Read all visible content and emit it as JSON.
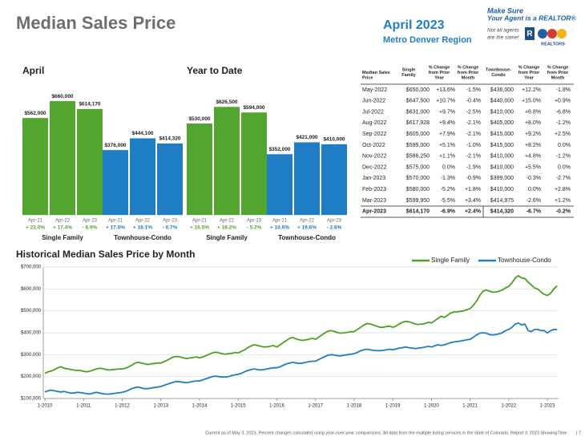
{
  "header": {
    "title": "Median Sales Price",
    "date": "April 2023",
    "region": "Metro Denver Region",
    "logo": {
      "line1": "Make Sure",
      "line2": "Your Agent is a REALTOR®",
      "note1": "Not all agents",
      "note2": "are the same!",
      "brand": "REALTORS"
    }
  },
  "chart_data": [
    {
      "type": "bar",
      "title": "April",
      "categories": [
        "Apr-21",
        "Apr-22",
        "Apr-23"
      ],
      "series": [
        {
          "name": "Single Family",
          "color": "#52a52e",
          "values": [
            562000,
            660000,
            614170
          ],
          "value_labels": [
            "$562,000",
            "$660,000",
            "$614,170"
          ],
          "changes": [
            "+ 23.0%",
            "+ 17.4%",
            "- 6.9%"
          ]
        },
        {
          "name": "Townhouse-Condo",
          "color": "#1f7dc5",
          "values": [
            376000,
            444100,
            414320
          ],
          "value_labels": [
            "$376,000",
            "$444,100",
            "$414,320"
          ],
          "changes": [
            "+ 17.0%",
            "+ 18.1%",
            "- 6.7%"
          ]
        }
      ]
    },
    {
      "type": "bar",
      "title": "Year to Date",
      "categories": [
        "Apr-21",
        "Apr-22",
        "Apr-23"
      ],
      "series": [
        {
          "name": "Single Family",
          "color": "#52a52e",
          "values": [
            530000,
            626500,
            594000
          ],
          "value_labels": [
            "$530,000",
            "$626,500",
            "$594,000"
          ],
          "changes": [
            "+ 16.5%",
            "+ 18.2%",
            "- 5.2%"
          ]
        },
        {
          "name": "Townhouse-Condo",
          "color": "#1f7dc5",
          "values": [
            352000,
            421000,
            410000
          ],
          "value_labels": [
            "$352,000",
            "$421,000",
            "$410,000"
          ],
          "changes": [
            "+ 10.6%",
            "+ 19.6%",
            "- 2.6%"
          ]
        }
      ]
    },
    {
      "type": "line",
      "title": "Historical Median Sales Price by Month",
      "legend": "top-right",
      "grid": true,
      "ylim": [
        100000,
        700000
      ],
      "yticks": [
        {
          "value": 100000,
          "label": "$100,000"
        },
        {
          "value": 200000,
          "label": "$200,000"
        },
        {
          "value": 300000,
          "label": "$300,000"
        },
        {
          "value": 400000,
          "label": "$400,000"
        },
        {
          "value": 500000,
          "label": "$500,000"
        },
        {
          "value": 600000,
          "label": "$600,000"
        },
        {
          "value": 700000,
          "label": "$700,000"
        }
      ],
      "categories": [
        "1-2010",
        null,
        null,
        null,
        null,
        null,
        null,
        null,
        null,
        null,
        null,
        null,
        "1-2011",
        null,
        null,
        null,
        null,
        null,
        null,
        null,
        null,
        null,
        null,
        null,
        "1-2012",
        null,
        null,
        null,
        null,
        null,
        null,
        null,
        null,
        null,
        null,
        null,
        "1-2013",
        null,
        null,
        null,
        null,
        null,
        null,
        null,
        null,
        null,
        null,
        null,
        "1-2014",
        null,
        null,
        null,
        null,
        null,
        null,
        null,
        null,
        null,
        null,
        null,
        "1-2015",
        null,
        null,
        null,
        null,
        null,
        null,
        null,
        null,
        null,
        null,
        null,
        "1-2016",
        null,
        null,
        null,
        null,
        null,
        null,
        null,
        null,
        null,
        null,
        null,
        "1-2017",
        null,
        null,
        null,
        null,
        null,
        null,
        null,
        null,
        null,
        null,
        null,
        "1-2018",
        null,
        null,
        null,
        null,
        null,
        null,
        null,
        null,
        null,
        null,
        null,
        "1-2019",
        null,
        null,
        null,
        null,
        null,
        null,
        null,
        null,
        null,
        null,
        null,
        "1-2020",
        null,
        null,
        null,
        null,
        null,
        null,
        null,
        null,
        null,
        null,
        null,
        "1-2021",
        null,
        null,
        null,
        null,
        null,
        null,
        null,
        null,
        null,
        null,
        null,
        "1-2022",
        null,
        null,
        null,
        null,
        null,
        null,
        null,
        null,
        null,
        null,
        null,
        "1-2023",
        null,
        null,
        null
      ],
      "series": [
        {
          "name": "Single Family",
          "color": "#4c9f22",
          "values": [
            215000,
            222000,
            225000,
            232000,
            240000,
            245000,
            238000,
            236000,
            232000,
            230000,
            228000,
            228000,
            224000,
            222000,
            225000,
            230000,
            235000,
            238000,
            236000,
            232000,
            230000,
            232000,
            233000,
            235000,
            235000,
            238000,
            245000,
            252000,
            262000,
            265000,
            262000,
            258000,
            255000,
            258000,
            260000,
            262000,
            262000,
            268000,
            275000,
            283000,
            290000,
            292000,
            290000,
            285000,
            282000,
            285000,
            287000,
            290000,
            285000,
            290000,
            295000,
            302000,
            308000,
            312000,
            308000,
            305000,
            302000,
            305000,
            306000,
            310000,
            308000,
            315000,
            322000,
            332000,
            340000,
            345000,
            342000,
            338000,
            335000,
            336000,
            338000,
            342000,
            335000,
            345000,
            355000,
            365000,
            375000,
            378000,
            372000,
            368000,
            365000,
            368000,
            370000,
            375000,
            370000,
            380000,
            390000,
            400000,
            408000,
            410000,
            405000,
            400000,
            398000,
            400000,
            402000,
            405000,
            405000,
            415000,
            425000,
            435000,
            442000,
            440000,
            435000,
            430000,
            425000,
            425000,
            428000,
            430000,
            425000,
            430000,
            440000,
            448000,
            452000,
            450000,
            445000,
            440000,
            438000,
            440000,
            442000,
            448000,
            445000,
            455000,
            465000,
            475000,
            470000,
            480000,
            490000,
            495000,
            495000,
            498000,
            500000,
            505000,
            510000,
            525000,
            545000,
            570000,
            590000,
            595000,
            590000,
            585000,
            585000,
            590000,
            595000,
            605000,
            612000,
            628000,
            650000,
            660000,
            650000,
            647500,
            631000,
            617928,
            605000,
            599000,
            586250,
            575000,
            570000,
            580000,
            599950,
            614170
          ]
        },
        {
          "name": "Townhouse-Condo",
          "color": "#1f7dc5",
          "values": [
            130000,
            135000,
            138000,
            135000,
            132000,
            130000,
            132000,
            128000,
            125000,
            125000,
            128000,
            127000,
            125000,
            122000,
            120000,
            125000,
            128000,
            125000,
            122000,
            120000,
            120000,
            122000,
            124000,
            126000,
            128000,
            132000,
            138000,
            145000,
            150000,
            152000,
            148000,
            145000,
            145000,
            148000,
            150000,
            152000,
            155000,
            160000,
            165000,
            170000,
            175000,
            178000,
            176000,
            174000,
            172000,
            175000,
            178000,
            180000,
            180000,
            185000,
            190000,
            195000,
            200000,
            202000,
            200000,
            198000,
            198000,
            200000,
            205000,
            208000,
            210000,
            215000,
            222000,
            228000,
            232000,
            235000,
            232000,
            230000,
            232000,
            235000,
            238000,
            240000,
            240000,
            245000,
            252000,
            258000,
            262000,
            265000,
            262000,
            260000,
            262000,
            265000,
            268000,
            270000,
            270000,
            278000,
            285000,
            292000,
            298000,
            300000,
            298000,
            295000,
            295000,
            298000,
            300000,
            302000,
            305000,
            310000,
            318000,
            322000,
            325000,
            322000,
            320000,
            318000,
            318000,
            320000,
            322000,
            325000,
            322000,
            326000,
            330000,
            332000,
            335000,
            332000,
            330000,
            328000,
            330000,
            332000,
            335000,
            338000,
            335000,
            340000,
            345000,
            342000,
            345000,
            350000,
            355000,
            358000,
            360000,
            362000,
            365000,
            368000,
            370000,
            380000,
            390000,
            398000,
            400000,
            398000,
            392000,
            390000,
            392000,
            395000,
            400000,
            410000,
            415000,
            425000,
            440000,
            444100,
            436000,
            440000,
            410000,
            405000,
            415000,
            415000,
            410000,
            410000,
            399000,
            410000,
            414975,
            414320
          ]
        }
      ]
    }
  ],
  "table": {
    "headers": [
      [
        "Median Sales",
        "Price"
      ],
      [
        "Single",
        "Family"
      ],
      [
        "% Change",
        "from Prior",
        "Year"
      ],
      [
        "% Change",
        "from Prior",
        "Month"
      ],
      [
        "Townhouse-",
        "Condo"
      ],
      [
        "% Change",
        "from Prior",
        "Year"
      ],
      [
        "% Change",
        "from Prior",
        "Month"
      ]
    ],
    "rows": [
      [
        "May-2022",
        "$650,000",
        "+13.6%",
        "-1.5%",
        "$436,000",
        "+12.2%",
        "-1.8%"
      ],
      [
        "Jun-2022",
        "$647,500",
        "+10.7%",
        "-0.4%",
        "$440,000",
        "+15.0%",
        "+0.9%"
      ],
      [
        "Jul-2022",
        "$631,000",
        "+9.7%",
        "-2.5%",
        "$410,000",
        "+6.8%",
        "-6.8%"
      ],
      [
        "Aug-2022",
        "$617,928",
        "+9.4%",
        "-2.1%",
        "$405,000",
        "+8.0%",
        "-1.2%"
      ],
      [
        "Sep-2022",
        "$605,000",
        "+7.9%",
        "-2.1%",
        "$415,000",
        "+9.2%",
        "+2.5%"
      ],
      [
        "Oct-2022",
        "$599,000",
        "+5.1%",
        "-1.0%",
        "$415,000",
        "+8.2%",
        "0.0%"
      ],
      [
        "Nov-2022",
        "$586,250",
        "+1.1%",
        "-2.1%",
        "$410,000",
        "+4.8%",
        "-1.2%"
      ],
      [
        "Dec-2022",
        "$575,000",
        "0.0%",
        "-1.9%",
        "$410,000",
        "+5.5%",
        "0.0%"
      ],
      [
        "Jan-2023",
        "$570,000",
        "-1.3%",
        "-0.9%",
        "$399,000",
        "-0.3%",
        "-2.7%"
      ],
      [
        "Feb-2023",
        "$580,000",
        "-5.2%",
        "+1.8%",
        "$410,000",
        "0.0%",
        "+2.8%"
      ],
      [
        "Mar-2023",
        "$599,950",
        "-5.5%",
        "+3.4%",
        "$414,975",
        "-2.6%",
        "+1.2%"
      ],
      [
        "Apr-2023",
        "$614,170",
        "-6.9%",
        "+2.4%",
        "$414,320",
        "-6.7%",
        "-0.2%"
      ]
    ]
  },
  "footer": {
    "note": "Current as of May 3, 2023. Percent changes calculated using year-over-year comparisons. All data from the multiple listing services in the state of Colorado. Report © 2023 ShowingTime.",
    "page": "| 7"
  }
}
